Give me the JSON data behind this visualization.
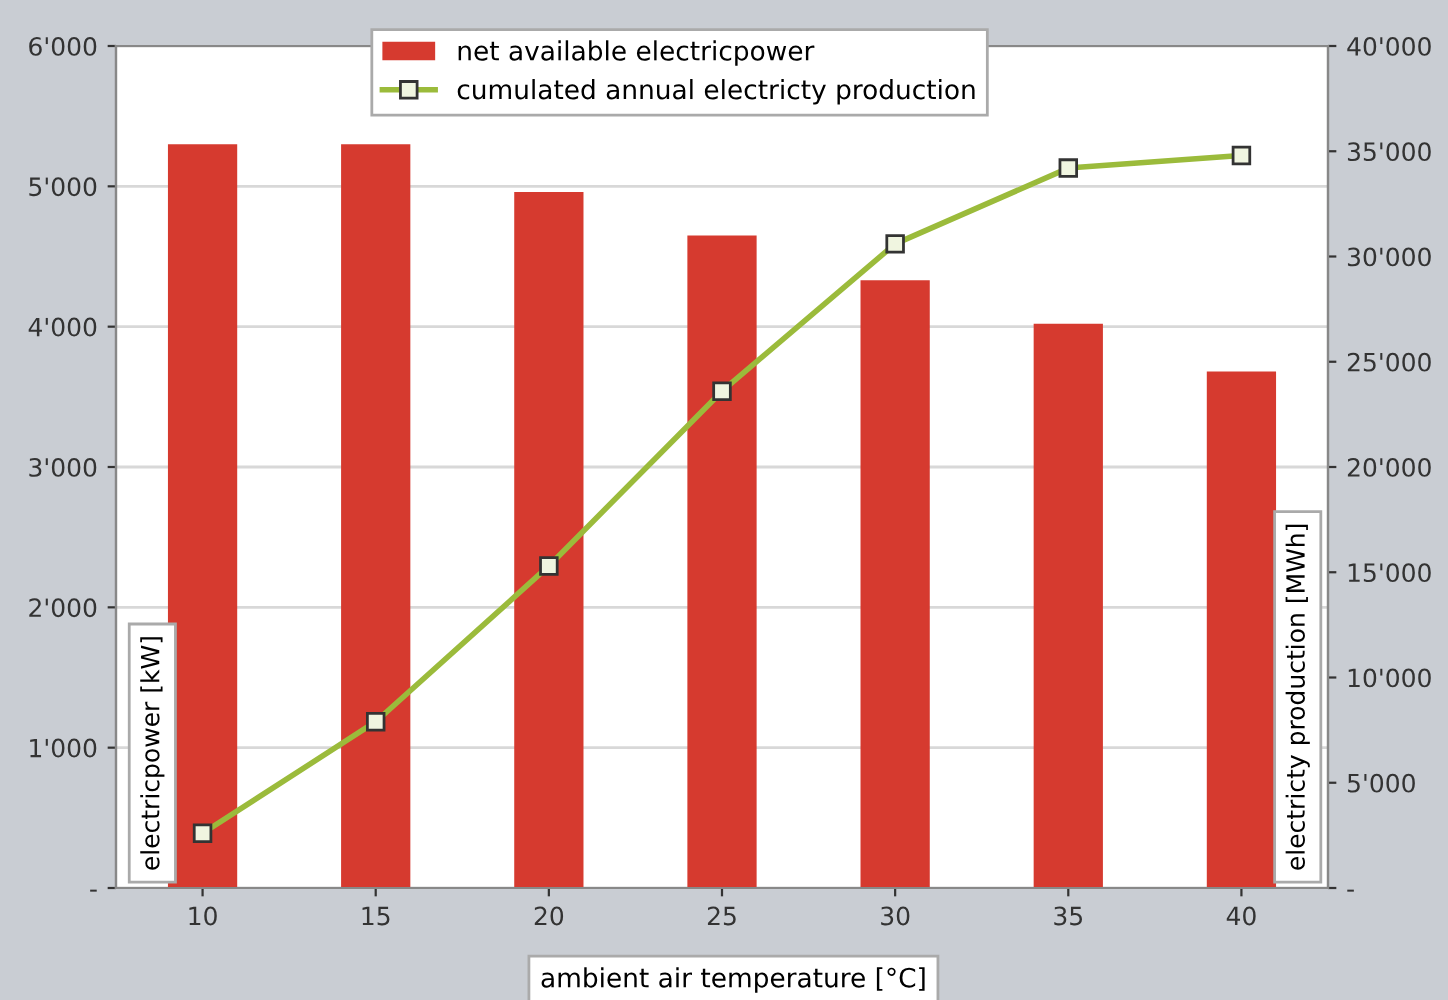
{
  "chart_data": {
    "type": "bar",
    "categories": [
      "10",
      "15",
      "20",
      "25",
      "30",
      "35",
      "40"
    ],
    "xlabel": "ambient air temperature [°C]",
    "ylabel": "electricpower [kW]",
    "y2label": "electricty production [MWh]",
    "series": [
      {
        "name": "net available electricpower",
        "color": "#d63a2f",
        "values": [
          5300,
          5300,
          4960,
          4650,
          4330,
          4020,
          3680
        ]
      },
      {
        "name": "cumulated annual electricty production",
        "type": "line",
        "axis": "y2",
        "color": "#9bbb3b",
        "marker": "square",
        "values": [
          2600,
          7900,
          15300,
          23600,
          30600,
          34200,
          34800
        ]
      }
    ],
    "ylim": [
      0,
      6000
    ],
    "yticks": [
      {
        "value": 0,
        "label": "-"
      },
      {
        "value": 1000,
        "label": "1'000"
      },
      {
        "value": 2000,
        "label": "2'000"
      },
      {
        "value": 3000,
        "label": "3'000"
      },
      {
        "value": 4000,
        "label": "4'000"
      },
      {
        "value": 5000,
        "label": "5'000"
      },
      {
        "value": 6000,
        "label": "6'000"
      }
    ],
    "y2lim": [
      0,
      40000
    ],
    "y2ticks": [
      {
        "value": 0,
        "label": "-"
      },
      {
        "value": 5000,
        "label": "5'000"
      },
      {
        "value": 10000,
        "label": "10'000"
      },
      {
        "value": 15000,
        "label": "15'000"
      },
      {
        "value": 20000,
        "label": "20'000"
      },
      {
        "value": 25000,
        "label": "25'000"
      },
      {
        "value": 30000,
        "label": "30'000"
      },
      {
        "value": 35000,
        "label": "35'000"
      },
      {
        "value": 40000,
        "label": "40'000"
      }
    ],
    "grid": "y",
    "legend": "top"
  }
}
